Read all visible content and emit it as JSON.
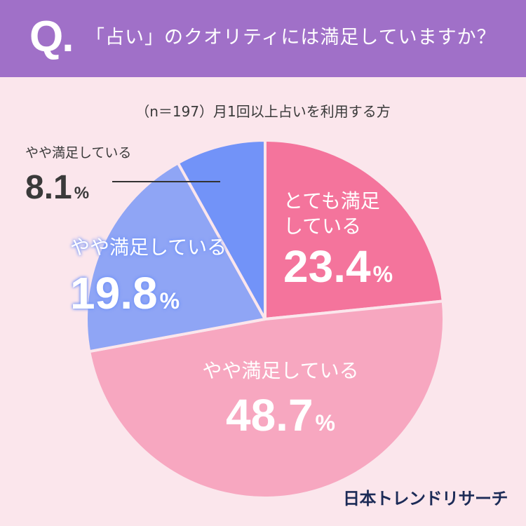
{
  "header": {
    "q_mark": "Q.",
    "question": "「占い」のクオリティには満足していますか？"
  },
  "subtitle": "（n＝197）月1回以上占いを利用する方",
  "brand": {
    "logo_text": "日本トレンドリサーチ"
  },
  "colors": {
    "header_bg": "#a070c8",
    "page_bg": "#fbe6ec",
    "very_satisfied": "#f4749c",
    "somewhat_satisfied": "#f7a7c0",
    "somewhat_unsatisfied": "#8fa5f5",
    "not_satisfied": "#7293f8",
    "logo": "#1c2b57"
  },
  "chart_data": {
    "type": "pie",
    "start_angle_deg": 0,
    "direction": "clockwise",
    "slices": [
      {
        "label_lines": [
          "とても満足",
          "している"
        ],
        "value": 23.4,
        "color": "#f4749c",
        "label_color": "#ffffff"
      },
      {
        "label_lines": [
          "やや満足している"
        ],
        "value": 48.7,
        "color": "#f7a7c0",
        "label_color": "#ffffff"
      },
      {
        "label_lines": [
          "やや満足している"
        ],
        "value": 19.8,
        "color": "#8fa5f5",
        "label_color": "#ffffff"
      },
      {
        "label_lines": [
          "やや満足している"
        ],
        "value": 8.1,
        "color": "#7293f8",
        "label_color": "#3a3a3a",
        "callout": true
      }
    ],
    "value_suffix": "%"
  }
}
